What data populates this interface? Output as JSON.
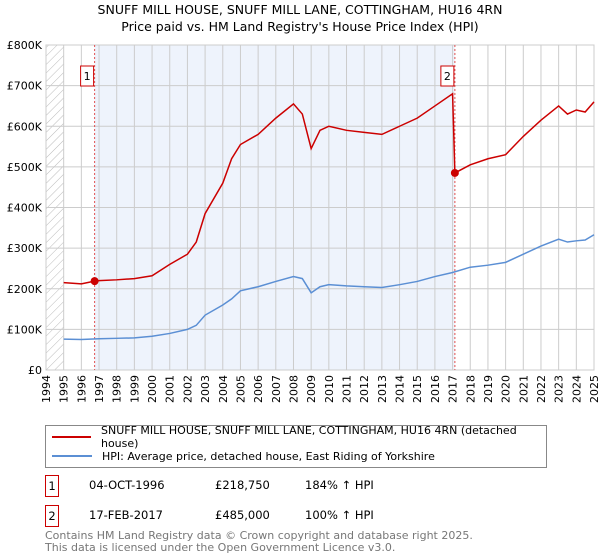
{
  "title_line1": "SNUFF MILL HOUSE, SNUFF MILL LANE, COTTINGHAM, HU16 4RN",
  "title_line2": "Price paid vs. HM Land Registry's House Price Index (HPI)",
  "chart_data": {
    "type": "line",
    "title": "SNUFF MILL HOUSE, SNUFF MILL LANE, COTTINGHAM, HU16 4RN — Price paid vs. HM Land Registry's House Price Index (HPI)",
    "xlabel": "",
    "ylabel": "",
    "xlim": [
      1994,
      2025
    ],
    "ylim": [
      0,
      800000
    ],
    "grid": true,
    "x_ticks": [
      "1994",
      "1995",
      "1996",
      "1997",
      "1998",
      "1999",
      "2000",
      "2001",
      "2002",
      "2003",
      "2004",
      "2005",
      "2006",
      "2007",
      "2008",
      "2009",
      "2010",
      "2011",
      "2012",
      "2013",
      "2014",
      "2015",
      "2016",
      "2017",
      "2018",
      "2019",
      "2020",
      "2021",
      "2022",
      "2023",
      "2024",
      "2025"
    ],
    "y_ticks": [
      {
        "v": 0,
        "label": "£0"
      },
      {
        "v": 100000,
        "label": "£100K"
      },
      {
        "v": 200000,
        "label": "£200K"
      },
      {
        "v": 300000,
        "label": "£300K"
      },
      {
        "v": 400000,
        "label": "£400K"
      },
      {
        "v": 500000,
        "label": "£500K"
      },
      {
        "v": 600000,
        "label": "£600K"
      },
      {
        "v": 700000,
        "label": "£700K"
      },
      {
        "v": 800000,
        "label": "£800K"
      }
    ],
    "series": [
      {
        "name": "SNUFF MILL HOUSE, SNUFF MILL LANE, COTTINGHAM, HU16 4RN (detached house)",
        "color": "#cc0000",
        "x": [
          1995,
          1996,
          1996.75,
          1997,
          1998,
          1999,
          2000,
          2001,
          2002,
          2002.5,
          2003,
          2004,
          2004.5,
          2005,
          2006,
          2007,
          2008,
          2008.5,
          2009,
          2009.5,
          2010,
          2011,
          2012,
          2013,
          2014,
          2015,
          2016,
          2017,
          2017.13,
          2018,
          2019,
          2020,
          2021,
          2022,
          2023,
          2023.5,
          2024,
          2024.5,
          2025
        ],
        "y": [
          215000,
          212000,
          218750,
          220000,
          222000,
          225000,
          232000,
          260000,
          285000,
          315000,
          385000,
          460000,
          520000,
          555000,
          580000,
          620000,
          655000,
          630000,
          545000,
          590000,
          600000,
          590000,
          585000,
          580000,
          600000,
          620000,
          650000,
          680000,
          485000,
          505000,
          520000,
          530000,
          575000,
          615000,
          650000,
          630000,
          640000,
          635000,
          660000
        ]
      },
      {
        "name": "HPI: Average price, detached house, East Riding of Yorkshire",
        "color": "#5b8fd4",
        "x": [
          1995,
          1996,
          1997,
          1998,
          1999,
          2000,
          2001,
          2002,
          2002.5,
          2003,
          2004,
          2004.5,
          2005,
          2006,
          2007,
          2008,
          2008.5,
          2009,
          2009.5,
          2010,
          2011,
          2012,
          2013,
          2014,
          2015,
          2016,
          2017,
          2018,
          2019,
          2020,
          2021,
          2022,
          2023,
          2023.5,
          2024,
          2024.5,
          2025
        ],
        "y": [
          76000,
          75000,
          77000,
          78000,
          79000,
          83000,
          90000,
          100000,
          110000,
          135000,
          160000,
          175000,
          195000,
          205000,
          218000,
          230000,
          225000,
          190000,
          205000,
          210000,
          207000,
          205000,
          203000,
          210000,
          218000,
          230000,
          240000,
          253000,
          258000,
          265000,
          285000,
          305000,
          322000,
          315000,
          318000,
          320000,
          333000
        ]
      }
    ],
    "sales": [
      {
        "n": "1",
        "x": 1996.75,
        "y": 218750,
        "date": "04-OCT-1996",
        "price": "£218,750",
        "hpi": "184% ↑ HPI"
      },
      {
        "n": "2",
        "x": 2017.13,
        "y": 485000,
        "date": "17-FEB-2017",
        "price": "£485,000",
        "hpi": "100% ↑ HPI"
      }
    ],
    "legend_position": "below"
  },
  "footer_line1": "Contains HM Land Registry data © Crown copyright and database right 2025.",
  "footer_line2": "This data is licensed under the Open Government Licence v3.0."
}
